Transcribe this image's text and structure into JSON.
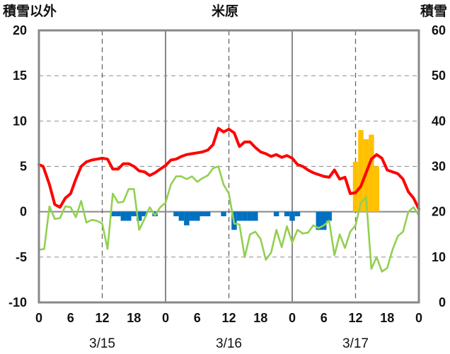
{
  "chart_data": {
    "type": "bar+line",
    "title": "米原",
    "left_axis_label": "積雪以外",
    "right_axis_label": "積雪",
    "y_left": {
      "min": -10,
      "max": 20,
      "ticks": [
        "20",
        "15",
        "10",
        "5",
        "0",
        "-5",
        "-10"
      ]
    },
    "y_right": {
      "min": 0,
      "max": 60,
      "ticks": [
        "60",
        "50",
        "40",
        "30",
        "20",
        "10",
        "0"
      ]
    },
    "x_ticks": [
      "0",
      "6",
      "12",
      "18",
      "0",
      "6",
      "12",
      "18",
      "0",
      "6",
      "12",
      "18",
      "0"
    ],
    "x_tick_hours": [
      0,
      6,
      12,
      18,
      24,
      30,
      36,
      42,
      48,
      54,
      60,
      66,
      72
    ],
    "dates": [
      {
        "label": "3/15",
        "hour": 12
      },
      {
        "label": "3/16",
        "hour": 36
      },
      {
        "label": "3/17",
        "hour": 60
      }
    ],
    "solid_vlines_hours": [
      24,
      48
    ],
    "dashed_vlines_hours": [
      12,
      36,
      60
    ],
    "colors": {
      "red_line": "#ff0000",
      "green_line": "#92d050",
      "blue_bars": "#0070c0",
      "orange_bars": "#ffc000",
      "purple_line": "#7030a0",
      "frame": "#888888"
    },
    "red_series": [
      [
        0,
        5.2
      ],
      [
        0.8,
        5.0
      ],
      [
        2,
        3.0
      ],
      [
        3,
        0.8
      ],
      [
        4,
        0.5
      ],
      [
        5,
        1.5
      ],
      [
        6,
        2.0
      ],
      [
        7,
        3.6
      ],
      [
        8,
        5.0
      ],
      [
        9,
        5.5
      ],
      [
        10,
        5.7
      ],
      [
        11,
        5.8
      ],
      [
        12,
        5.9
      ],
      [
        13,
        5.8
      ],
      [
        14,
        4.7
      ],
      [
        15,
        4.7
      ],
      [
        16,
        5.3
      ],
      [
        17,
        5.3
      ],
      [
        18,
        5.0
      ],
      [
        19,
        4.5
      ],
      [
        20,
        4.4
      ],
      [
        21,
        4.0
      ],
      [
        22,
        4.3
      ],
      [
        23,
        4.7
      ],
      [
        24,
        5.1
      ],
      [
        25,
        5.7
      ],
      [
        26,
        5.8
      ],
      [
        27,
        6.1
      ],
      [
        28,
        6.3
      ],
      [
        29,
        6.4
      ],
      [
        30,
        6.5
      ],
      [
        31,
        6.6
      ],
      [
        32,
        6.8
      ],
      [
        33,
        7.4
      ],
      [
        34,
        9.2
      ],
      [
        35,
        8.8
      ],
      [
        36,
        9.1
      ],
      [
        37,
        8.7
      ],
      [
        38,
        7.2
      ],
      [
        39,
        7.7
      ],
      [
        40,
        7.7
      ],
      [
        41,
        7.1
      ],
      [
        42,
        6.6
      ],
      [
        43,
        6.4
      ],
      [
        44,
        6.1
      ],
      [
        45,
        6.3
      ],
      [
        46,
        6.0
      ],
      [
        47,
        6.2
      ],
      [
        48,
        5.9
      ],
      [
        49,
        5.2
      ],
      [
        50,
        5.0
      ],
      [
        51,
        4.6
      ],
      [
        52,
        4.3
      ],
      [
        53,
        4.1
      ],
      [
        54,
        3.9
      ],
      [
        55,
        3.8
      ],
      [
        56,
        4.6
      ],
      [
        57,
        3.6
      ],
      [
        58,
        3.8
      ],
      [
        59,
        2.0
      ],
      [
        60,
        2.1
      ],
      [
        61,
        2.8
      ],
      [
        62,
        4.3
      ],
      [
        63,
        5.8
      ],
      [
        64,
        6.3
      ],
      [
        65,
        5.9
      ],
      [
        66,
        4.6
      ],
      [
        67,
        4.4
      ],
      [
        68,
        4.2
      ],
      [
        69,
        3.6
      ],
      [
        70,
        2.2
      ],
      [
        71,
        1.5
      ],
      [
        72,
        0.3
      ]
    ],
    "green_series": [
      [
        0,
        -4.2
      ],
      [
        1,
        -4.1
      ],
      [
        2,
        0.6
      ],
      [
        3,
        -0.8
      ],
      [
        4,
        -0.7
      ],
      [
        5,
        0.6
      ],
      [
        6,
        0.5
      ],
      [
        7,
        -0.6
      ],
      [
        8,
        1.2
      ],
      [
        9,
        -1.2
      ],
      [
        10,
        -0.9
      ],
      [
        11,
        -1.0
      ],
      [
        12,
        -1.3
      ],
      [
        13,
        -4.1
      ],
      [
        14,
        2.0
      ],
      [
        15,
        1.0
      ],
      [
        16,
        1.1
      ],
      [
        17,
        2.5
      ],
      [
        18,
        2.5
      ],
      [
        19,
        -2.0
      ],
      [
        20,
        -0.8
      ],
      [
        21,
        0.5
      ],
      [
        22,
        -0.4
      ],
      [
        23,
        0.5
      ],
      [
        24,
        1.0
      ],
      [
        25,
        3.0
      ],
      [
        26,
        3.9
      ],
      [
        27,
        3.9
      ],
      [
        28,
        3.6
      ],
      [
        29,
        3.9
      ],
      [
        30,
        3.3
      ],
      [
        31,
        3.7
      ],
      [
        32,
        4.0
      ],
      [
        33,
        4.8
      ],
      [
        34,
        5.0
      ],
      [
        35,
        3.0
      ],
      [
        36,
        2.0
      ],
      [
        37,
        -1.3
      ],
      [
        38,
        -1.4
      ],
      [
        39,
        -5.0
      ],
      [
        40,
        -2.5
      ],
      [
        41,
        -2.2
      ],
      [
        42,
        -3.0
      ],
      [
        43,
        -5.3
      ],
      [
        44,
        -4.5
      ],
      [
        45,
        -2.0
      ],
      [
        46,
        -3.9
      ],
      [
        47,
        -1.6
      ],
      [
        48,
        -3.4
      ],
      [
        49,
        -2.0
      ],
      [
        50,
        -2.4
      ],
      [
        51,
        -2.3
      ],
      [
        52,
        -1.5
      ],
      [
        53,
        -1.8
      ],
      [
        54,
        -1.5
      ],
      [
        55,
        -1.0
      ],
      [
        56,
        -4.8
      ],
      [
        57,
        -2.5
      ],
      [
        58,
        -4.0
      ],
      [
        59,
        -2.2
      ],
      [
        60,
        -1.5
      ],
      [
        61,
        1.0
      ],
      [
        62,
        1.6
      ],
      [
        63,
        -6.3
      ],
      [
        64,
        -5.0
      ],
      [
        65,
        -6.6
      ],
      [
        66,
        -6.2
      ],
      [
        67,
        -4.2
      ],
      [
        68,
        -2.7
      ],
      [
        69,
        -2.2
      ],
      [
        70,
        0.0
      ],
      [
        71,
        0.5
      ],
      [
        72,
        -0.4
      ]
    ],
    "blue_bars": [
      [
        14,
        -0.5
      ],
      [
        15,
        -0.5
      ],
      [
        16,
        -1.0
      ],
      [
        17,
        -1.0
      ],
      [
        18,
        -0.5
      ],
      [
        19,
        -1.0
      ],
      [
        20,
        -0.5
      ],
      [
        22,
        -0.5
      ],
      [
        26,
        -0.5
      ],
      [
        27,
        -1.0
      ],
      [
        28,
        -1.5
      ],
      [
        29,
        -1.0
      ],
      [
        30,
        -1.0
      ],
      [
        31,
        -0.5
      ],
      [
        32,
        -0.5
      ],
      [
        35,
        -0.5
      ],
      [
        37,
        -2.0
      ],
      [
        38,
        -1.0
      ],
      [
        39,
        -1.0
      ],
      [
        40,
        -1.0
      ],
      [
        41,
        -1.0
      ],
      [
        45,
        -0.5
      ],
      [
        47,
        -0.5
      ],
      [
        48,
        -1.0
      ],
      [
        49,
        -0.5
      ],
      [
        53,
        -2.0
      ],
      [
        54,
        -2.0
      ],
      [
        55,
        -1.0
      ]
    ],
    "orange_bars": [
      [
        60,
        31
      ],
      [
        61,
        38
      ],
      [
        62,
        36
      ],
      [
        63,
        37
      ],
      [
        64,
        30
      ]
    ],
    "purple_series": [
      [
        0,
        -10
      ],
      [
        72,
        -10
      ]
    ]
  }
}
